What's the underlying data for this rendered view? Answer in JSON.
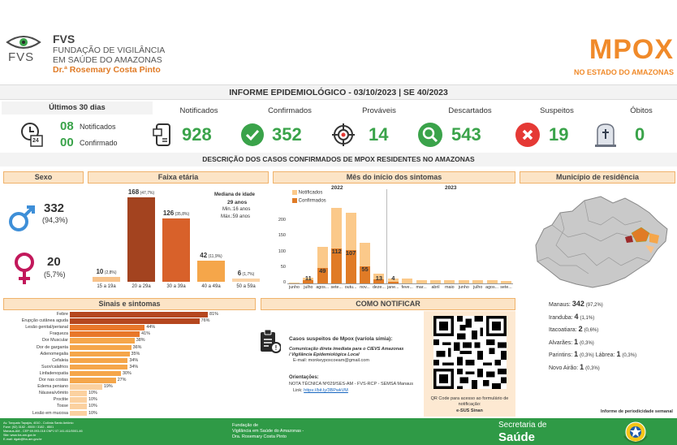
{
  "header": {
    "org_short": "FVS",
    "org_line1": "FUNDAÇÃO DE VIGILÂNCIA",
    "org_line2": "EM SAÚDE DO AMAZONAS",
    "org_line3": "Dr.ª Rosemary Costa Pinto",
    "logo_fvs": "FVS",
    "title": "MPOX",
    "subtitle": "NO ESTADO DO AMAZONAS"
  },
  "report_title": "INFORME EPIDEMIOLÓGICO - 03/10/2023 | SE 40/2023",
  "last30": {
    "title": "Últimos 30 dias",
    "notified_num": "08",
    "notified_label": "Notificados",
    "confirmed_num": "00",
    "confirmed_label": "Confirmado",
    "calendar_day": "24"
  },
  "kpis": [
    {
      "label": "Notificados",
      "value": "928",
      "icon": "phone-icon"
    },
    {
      "label": "Confirmados",
      "value": "352",
      "icon": "check-icon"
    },
    {
      "label": "Prováveis",
      "value": "14",
      "icon": "target-icon"
    },
    {
      "label": "Descartados",
      "value": "543",
      "icon": "magnifier-icon"
    },
    {
      "label": "Suspeitos",
      "value": "19",
      "icon": "x-icon"
    },
    {
      "label": "Óbitos",
      "value": "0",
      "icon": "tomb-icon"
    }
  ],
  "section_title": "DESCRIÇÃO DOS CASOS CONFIRMADOS DE MPOX RESIDENTES NO AMAZONAS",
  "sexo": {
    "title": "Sexo",
    "male_value": "332",
    "male_pct": "(94,3%)",
    "female_value": "20",
    "female_pct": "(5,7%)"
  },
  "faixa": {
    "title": "Faixa etária",
    "median_title": "Mediana de idade",
    "median_value": "29 anos",
    "min": "Min.:16 anos",
    "max": "Máx.:59 anos"
  },
  "mes": {
    "title": "Mês do início dos sintomas",
    "legend_notified": "Notificados",
    "legend_confirmed": "Confirmados",
    "year_2022": "2022",
    "year_2023": "2023"
  },
  "municipio": {
    "title": "Município de residência",
    "rows": [
      {
        "name": "Manaus:",
        "value": "342",
        "pct": "(97,2%)"
      },
      {
        "name": "Iranduba:",
        "value": "4",
        "pct": "(1,1%)"
      },
      {
        "name": "Itacoatiara:",
        "value": "2",
        "pct": "(0,6%)"
      },
      {
        "name": "Alvarães:",
        "value": "1",
        "pct": "(0,3%)"
      },
      {
        "name": "Parintins:",
        "value": "1",
        "pct": "(0,3%)"
      },
      {
        "name": "Lábrea:",
        "value": "1",
        "pct": "(0,3%)"
      },
      {
        "name": "Novo Airão:",
        "value": "1",
        "pct": "(0,3%)"
      }
    ],
    "footnote": "Informe de periodicidade semanal"
  },
  "sinais_title": "Sinais e sintomas",
  "notificar": {
    "title": "COMO NOTIFICAR",
    "suspect_title": "Casos suspeitos de Mpox (varíola símia):",
    "comm_line1": "Comunicação direta imediata para o CIEVS Amazonas",
    "comm_line2": "/ Vigilância Epidemiológica Local",
    "email": "E-mail: monkeypoxcoeam@gmail.com",
    "orient_title": "Orientações:",
    "orient_text": "NOTA TÉCNICA Nº029/SES-AM - FVS-RCP - SEMSA Manaus",
    "link_label": "Link:",
    "link_url": "https://bit.ly/3BPwkVM",
    "qr_caption1": "QR Code para acesso ao formulário de",
    "qr_caption2": "notificação:",
    "qr_caption3": "e-SUS Sinan"
  },
  "footer": {
    "address1": "Av. Torquato Tapajós, 4010 - Colônia Santo Antônio",
    "address2": "Fone: (92) 3182 - 8500 / 3182 - 8501",
    "address3": "Manaus-AM - CEP 69.093-018 CNPJ 07.141.411/0001-46",
    "address4": "Site: www.fvs.am.gov.br",
    "address5": "E-mail: dgab@fvs.am.gov.br",
    "org1": "Fundação de",
    "org2": "Vigilância em Saúde do Amazonas -",
    "org3": "Dra. Rosemary Costa Pinto",
    "sec_line1": "Secretaria de",
    "sec_line2": "Saúde"
  },
  "colors": {
    "orange": "#f08a2a",
    "green": "#3aa34a",
    "footer_green": "#2f9a46",
    "panel_header": "#fce4c6"
  },
  "chart_data": [
    {
      "type": "bar",
      "title": "Faixa etária",
      "categories": [
        "15 a 19a",
        "20 a 29a",
        "30 a 39a",
        "40 a 49a",
        "50 a 59a"
      ],
      "values": [
        10,
        168,
        126,
        42,
        6
      ],
      "labels": [
        "10",
        "168",
        "126",
        "42",
        "6"
      ],
      "pct_labels": [
        "(2,8%)",
        "(47,7%)",
        "(35,8%)",
        "(11,9%)",
        "(1,7%)"
      ],
      "colors": [
        "#f7c28a",
        "#a3431f",
        "#d8612a",
        "#f5a64a",
        "#fad3a6"
      ]
    },
    {
      "type": "bar",
      "title": "Mês do início dos sintomas",
      "categories": [
        "junho",
        "julho",
        "agos...",
        "sete...",
        "outu...",
        "nov...",
        "deze...",
        "jane...",
        "feve...",
        "mar...",
        "abril",
        "maio",
        "junho",
        "julho",
        "agos...",
        "sete..."
      ],
      "series": [
        {
          "name": "Notificados",
          "values": [
            3,
            18,
            118,
            243,
            227,
            130,
            30,
            15,
            15,
            10,
            10,
            10,
            10,
            10,
            10,
            8
          ]
        },
        {
          "name": "Confirmados",
          "values": [
            0,
            11,
            49,
            112,
            107,
            55,
            13,
            4,
            0,
            0,
            0,
            0,
            0,
            0,
            0,
            0
          ]
        }
      ],
      "confirmed_labels": [
        "",
        "11",
        "49",
        "112",
        "107",
        "55",
        "13",
        "4",
        "",
        "",
        "",
        "",
        "",
        "",
        "",
        ""
      ],
      "yticks": [
        "0",
        "50",
        "100",
        "150",
        "200"
      ],
      "ylim": [
        0,
        250
      ]
    },
    {
      "type": "bar",
      "title": "Sinais e sintomas",
      "categories": [
        "Febre",
        "Erupção cutânea aguda",
        "Lesão genital/perianal",
        "Fraqueza",
        "Dor Muscular",
        "Dor de garganta",
        "Adenomegalia",
        "Cefaleia",
        "Suor/calafrios",
        "Linfadenopatia",
        "Dor nas costas",
        "Edema peniano",
        "Náusea/vômito",
        "Proctite",
        "Tosse",
        "Lesão em mucosa"
      ],
      "values": [
        81,
        76,
        44,
        41,
        38,
        36,
        35,
        34,
        34,
        30,
        27,
        19,
        10,
        10,
        10,
        10
      ],
      "labels": [
        "81%",
        "76%",
        "44%",
        "41%",
        "38%",
        "36%",
        "35%",
        "34%",
        "34%",
        "30%",
        "27%",
        "19%",
        "10%",
        "10%",
        "10%",
        "10%"
      ]
    }
  ]
}
